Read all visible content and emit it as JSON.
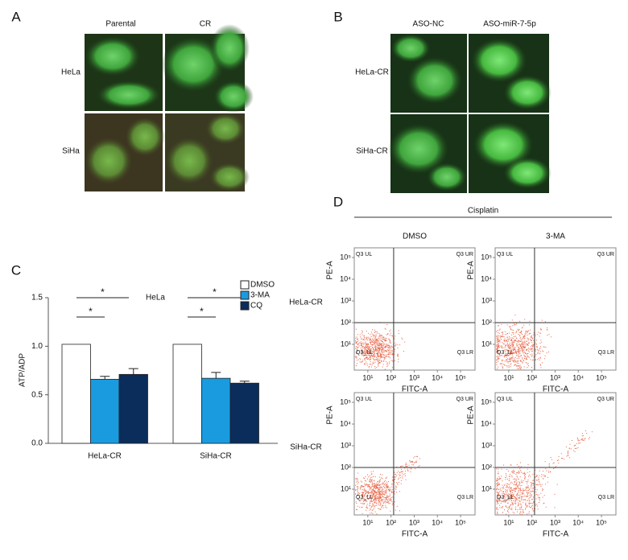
{
  "figure": {
    "A": {
      "label": "A",
      "columns": [
        "Parental",
        "CR"
      ],
      "rows": [
        "HeLa",
        "SiHa"
      ]
    },
    "B": {
      "label": "B",
      "columns": [
        "ASO-NC",
        "ASO-miR-7-5p"
      ],
      "rows": [
        "HeLa-CR",
        "SiHa-CR"
      ]
    }
  },
  "chart_data": [
    {
      "type": "bar",
      "label": "C",
      "title": "HeLa",
      "ylabel": "ATP/ADP",
      "categories": [
        "HeLa-CR",
        "SiHa-CR"
      ],
      "ylim": [
        0,
        1.5
      ],
      "yticks": [
        {
          "value": 0,
          "label": "0.0"
        },
        {
          "value": 0.5,
          "label": "0.5"
        },
        {
          "value": 1,
          "label": "1.0"
        },
        {
          "value": 1.5,
          "label": "1.5"
        }
      ],
      "series": [
        {
          "name": "DMSO",
          "color": "#ffffff",
          "values": [
            1.02,
            1.02
          ]
        },
        {
          "name": "3-MA",
          "color": "#1a9be0",
          "values": [
            0.66,
            0.67
          ],
          "errors": [
            0.03,
            0.06
          ]
        },
        {
          "name": "CQ",
          "color": "#0b2d5b",
          "values": [
            0.71,
            0.62
          ],
          "errors": [
            0.06,
            0.02
          ]
        }
      ],
      "annotations": [
        "*",
        "*",
        "*",
        "*"
      ]
    },
    {
      "type": "flow",
      "label": "D",
      "title": "Cisplatin",
      "columns": [
        "DMSO",
        "3-MA"
      ],
      "rows": [
        "HeLa-CR",
        "SiHa-CR"
      ],
      "xlabel": "FITC-A",
      "ylabel": "PE-A",
      "log": true,
      "xlim": [
        2.6,
        420000
      ],
      "ylim": [
        0.65,
        280000
      ],
      "xticks": [
        {
          "value": 10,
          "label": "10¹"
        },
        {
          "value": 100,
          "label": "10²"
        },
        {
          "value": 1000,
          "label": "10³"
        },
        {
          "value": 10000,
          "label": "10⁴"
        },
        {
          "value": 100000,
          "label": "10⁵"
        }
      ],
      "yticks": [
        {
          "value": 10,
          "label": "10¹"
        },
        {
          "value": 100,
          "label": "10²"
        },
        {
          "value": 1000,
          "label": "10³"
        },
        {
          "value": 10000,
          "label": "10⁴"
        },
        {
          "value": 100000,
          "label": "10⁵"
        }
      ],
      "gate": [
        130,
        100
      ],
      "quadrants": [
        "Q3 UL",
        "Q3 UR",
        "Q3_LL",
        "Q3 LR"
      ]
    }
  ]
}
